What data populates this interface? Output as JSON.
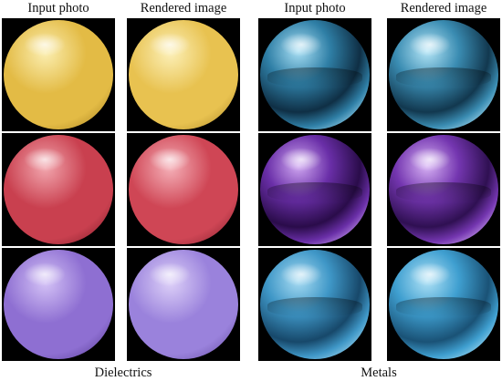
{
  "columns": [
    "Input photo",
    "Rendered image",
    "Input photo",
    "Rendered image"
  ],
  "groups": [
    "Dielectrics",
    "Metals"
  ],
  "rows": [
    [
      {
        "name": "yellow-dielectric",
        "base": "#e3bb45",
        "light": "#fbeeb0",
        "dark": "#9a7418",
        "type": "dielectric"
      },
      {
        "name": "yellow-dielectric",
        "base": "#e8c250",
        "light": "#fcf0b8",
        "dark": "#a07c1e",
        "type": "dielectric"
      },
      {
        "name": "blue-metal",
        "base": "#2f7fa6",
        "light": "#a9e0f5",
        "dark": "#0f2f45",
        "type": "metal"
      },
      {
        "name": "blue-metal",
        "base": "#3a8cb2",
        "light": "#b5e6f7",
        "dark": "#12384f",
        "type": "metal"
      }
    ],
    [
      {
        "name": "red-dielectric",
        "base": "#c9404f",
        "light": "#f2a6ae",
        "dark": "#6e1420",
        "type": "dielectric"
      },
      {
        "name": "red-dielectric",
        "base": "#cf4655",
        "light": "#f5b0b8",
        "dark": "#761826",
        "type": "dielectric"
      },
      {
        "name": "purple-metal",
        "base": "#6a2fa8",
        "light": "#d1a9f2",
        "dark": "#2a0c4a",
        "type": "metal"
      },
      {
        "name": "purple-metal",
        "base": "#7436b0",
        "light": "#d8b3f5",
        "dark": "#2f1052",
        "type": "metal"
      }
    ],
    [
      {
        "name": "lavender-dielectric",
        "base": "#8e6fd2",
        "light": "#d4c2f6",
        "dark": "#4a2f86",
        "type": "dielectric"
      },
      {
        "name": "lavender-dielectric",
        "base": "#9a82dc",
        "light": "#ddd0f8",
        "dark": "#5a3f96",
        "type": "dielectric"
      },
      {
        "name": "cyan-metal",
        "base": "#3f97c7",
        "light": "#a8dcf3",
        "dark": "#17486a",
        "type": "metal"
      },
      {
        "name": "cyan-metal",
        "base": "#3f9fd0",
        "light": "#b0e2f6",
        "dark": "#1a5276",
        "type": "metal"
      }
    ]
  ]
}
